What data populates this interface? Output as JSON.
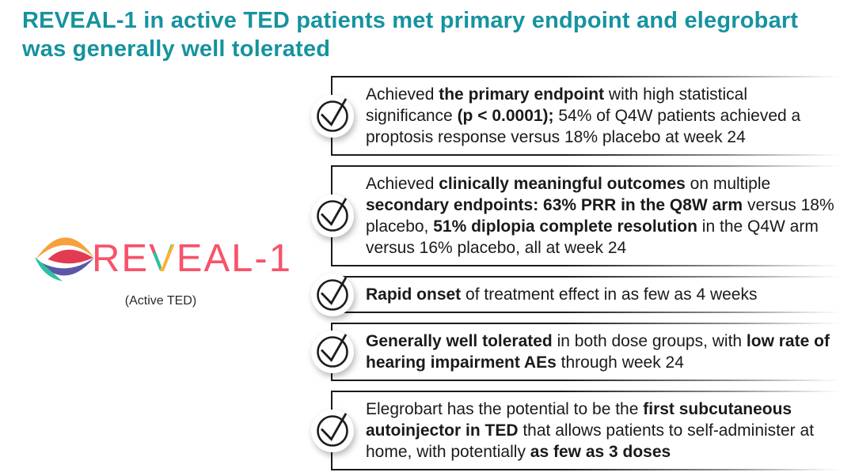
{
  "slide": {
    "title": "REVEAL-1 in active TED patients met primary endpoint and elegrobart was generally well tolerated",
    "title_color": "#16939F",
    "logo": {
      "name": "REVEAL-1",
      "text_pre": "RE",
      "text_v": "V",
      "text_post": "EAL-1",
      "subtitle": "(Active TED)",
      "icon": "eye-logo-icon",
      "colors": {
        "coral": "#F7536B",
        "orange": "#F6A13C",
        "red": "#E23B52",
        "teal": "#2DBFA3",
        "purple": "#5A58A6"
      }
    },
    "bullets": [
      {
        "icon": "check-circle-icon",
        "segments": [
          {
            "t": "Achieved ",
            "b": false
          },
          {
            "t": "the primary endpoint",
            "b": true
          },
          {
            "t": " with high statistical significance ",
            "b": false
          },
          {
            "t": "(p < 0.0001);",
            "b": true
          },
          {
            "t": " 54% of Q4W patients achieved a proptosis response versus 18% placebo at week 24",
            "b": false
          }
        ]
      },
      {
        "icon": "check-circle-icon",
        "segments": [
          {
            "t": "Achieved ",
            "b": false
          },
          {
            "t": "clinically meaningful outcomes",
            "b": true
          },
          {
            "t": " on multiple ",
            "b": false
          },
          {
            "t": "secondary endpoints: 63% PRR in the Q8W arm",
            "b": true
          },
          {
            "t": " versus 18% placebo, ",
            "b": false
          },
          {
            "t": "51% diplopia complete resolution",
            "b": true
          },
          {
            "t": " in the Q4W arm versus 16% placebo, all at week 24",
            "b": false
          }
        ]
      },
      {
        "icon": "check-circle-icon",
        "segments": [
          {
            "t": "Rapid onset",
            "b": true
          },
          {
            "t": " of treatment effect in as few as 4 weeks",
            "b": false
          }
        ]
      },
      {
        "icon": "check-circle-icon",
        "segments": [
          {
            "t": "Generally well tolerated",
            "b": true
          },
          {
            "t": " in both dose groups, with ",
            "b": false
          },
          {
            "t": "low rate of hearing impairment AEs",
            "b": true
          },
          {
            "t": " through week 24",
            "b": false
          }
        ]
      },
      {
        "icon": "check-circle-icon",
        "segments": [
          {
            "t": "Elegrobart has the potential to be the ",
            "b": false
          },
          {
            "t": "first subcutaneous autoinjector in TED",
            "b": true
          },
          {
            "t": " that allows patients to self-administer at home, with potentially ",
            "b": false
          },
          {
            "t": "as few as 3 doses",
            "b": true
          }
        ]
      }
    ]
  }
}
